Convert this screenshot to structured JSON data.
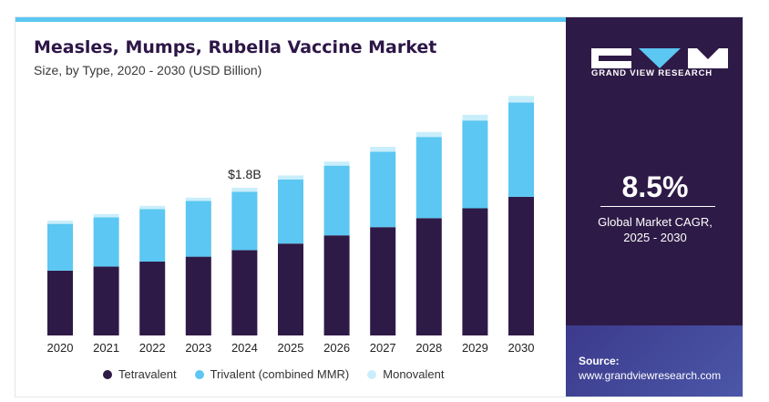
{
  "header": {
    "title": "Measles, Mumps, Rubella Vaccine Market",
    "subtitle": "Size, by Type, 2020 - 2030 (USD Billion)"
  },
  "sidebar": {
    "brand": "GRAND VIEW RESEARCH",
    "cagr_value": "8.5%",
    "cagr_label_line1": "Global Market CAGR,",
    "cagr_label_line2": "2025 - 2030",
    "source_label": "Source:",
    "source_url": "www.grandviewresearch.com"
  },
  "colors": {
    "tetravalent": "#2e1a47",
    "trivalent": "#5bc7f2",
    "monovalent": "#c9eefb",
    "panel": "#2e1a47"
  },
  "chart_data": {
    "type": "bar",
    "stacked": true,
    "title": "Measles, Mumps, Rubella Vaccine Market",
    "subtitle": "Size, by Type, 2020 - 2030 (USD Billion)",
    "categories": [
      "2020",
      "2021",
      "2022",
      "2023",
      "2024",
      "2025",
      "2026",
      "2027",
      "2028",
      "2029",
      "2030"
    ],
    "series": [
      {
        "name": "Tetravalent",
        "values": [
          0.79,
          0.84,
          0.9,
          0.96,
          1.04,
          1.12,
          1.22,
          1.32,
          1.43,
          1.55,
          1.69
        ]
      },
      {
        "name": "Trivalent (combined MMR)",
        "values": [
          0.57,
          0.6,
          0.64,
          0.68,
          0.71,
          0.78,
          0.85,
          0.92,
          0.99,
          1.07,
          1.15
        ]
      },
      {
        "name": "Monovalent",
        "values": [
          0.04,
          0.04,
          0.04,
          0.04,
          0.05,
          0.05,
          0.05,
          0.06,
          0.06,
          0.07,
          0.08
        ]
      }
    ],
    "annotations": [
      {
        "category": "2024",
        "text": "$1.8B"
      }
    ],
    "ylim": [
      0,
      3.0
    ],
    "legend": "bottom",
    "grid": false
  }
}
